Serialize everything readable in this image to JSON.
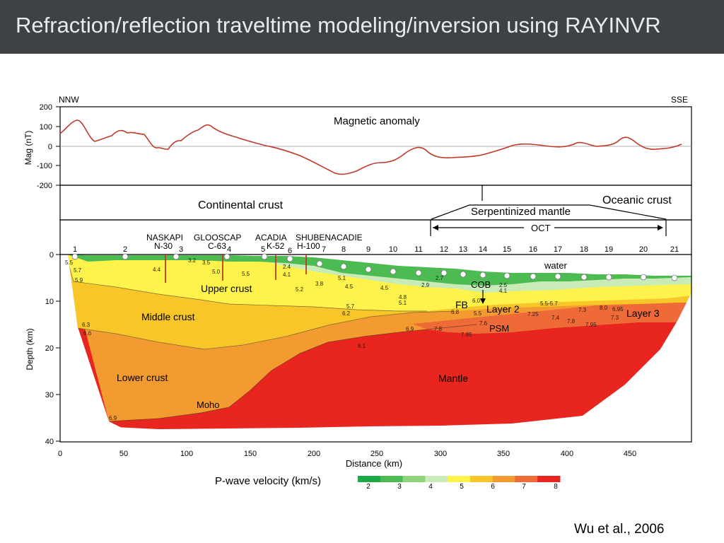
{
  "slide": {
    "title": "Refraction/reflection traveltime modeling/inversion using RAYINVR",
    "citation": "Wu et al., 2006"
  },
  "figure": {
    "direction_left": "NNW",
    "direction_right": "SSE",
    "magnetic": {
      "title": "Magnetic anomaly",
      "ylabel": "Mag (nT)",
      "ticks": [
        "200",
        "100",
        "0",
        "-100",
        "-200"
      ]
    },
    "crust_types": {
      "continental": "Continental crust",
      "oceanic": "Oceanic crust",
      "serpentinized": "Serpentinized mantle",
      "oct": "OCT"
    },
    "wells": [
      "NASKAPI",
      "N-30",
      "GLOOSCAP",
      "C-63",
      "ACADIA",
      "K-52",
      "SHUBENACADIE",
      "H-100"
    ],
    "obs_numbers": [
      "1",
      "2",
      "3",
      "4",
      "5",
      "6",
      "7",
      "8",
      "9",
      "10",
      "11",
      "12",
      "13",
      "14",
      "15",
      "16",
      "17",
      "18",
      "19",
      "20",
      "21"
    ],
    "layers": {
      "water": "water",
      "upper_crust": "Upper crust",
      "middle_crust": "Middle crust",
      "lower_crust": "Lower crust",
      "mantle": "Mantle",
      "moho": "Moho",
      "cob": "COB",
      "fb": "FB",
      "layer2": "Layer 2",
      "layer3": "Layer 3",
      "psm": "PSM"
    },
    "velocity_labels": [
      "5.5",
      "5.7",
      "5.9",
      "4.4",
      "3.2",
      "3.5",
      "5.0",
      "5.5",
      "2.4",
      "4.1",
      "3.8",
      "5.2",
      "5.1",
      "4.5",
      "4.5",
      "4.8",
      "5.1",
      "2.9",
      "2.7",
      "5.7",
      "6.2",
      "6.8",
      "6.0",
      "5.5",
      "5.5-5.7",
      "4.1",
      "2.5",
      "7.25",
      "7.4",
      "7.3",
      "8.0",
      "6.95",
      "7.3",
      "7.8",
      "7.95",
      "7.6",
      "7.8",
      "7.95",
      "6.9",
      "8.1",
      "6.3",
      "6.6",
      "6.9"
    ],
    "depth_axis": {
      "label": "Depth (km)",
      "ticks": [
        "0",
        "10",
        "20",
        "30",
        "40"
      ]
    },
    "distance_axis": {
      "label": "Distance (km)",
      "ticks": [
        "0",
        "50",
        "100",
        "150",
        "200",
        "250",
        "300",
        "350",
        "400",
        "450"
      ]
    },
    "colorbar": {
      "label": "P-wave velocity (km/s)",
      "ticks": [
        "2",
        "3",
        "4",
        "5",
        "6",
        "7",
        "8"
      ],
      "colors": [
        "#1fa84a",
        "#4cbc52",
        "#8fd37a",
        "#c8ebb8",
        "#fff24a",
        "#f8c628",
        "#f39a30",
        "#ee6a36",
        "#e8261f"
      ]
    }
  }
}
